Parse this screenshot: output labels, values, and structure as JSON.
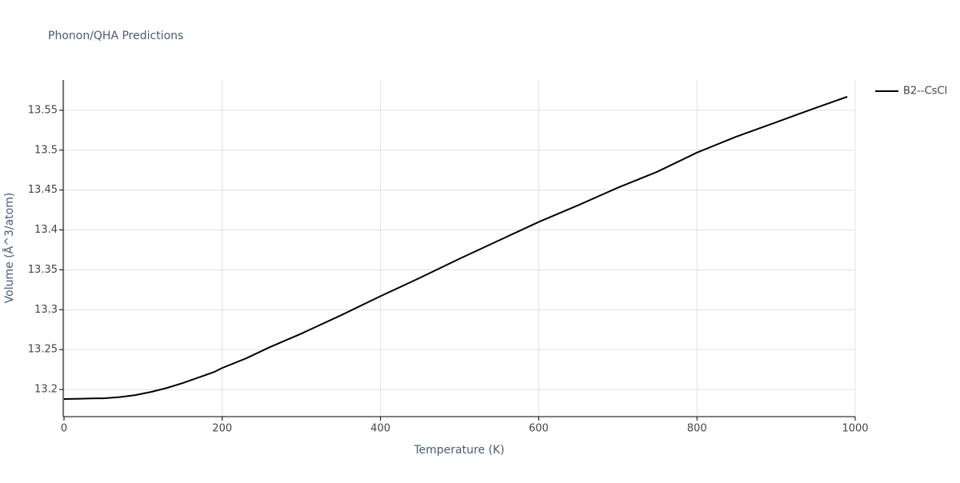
{
  "chart_data": {
    "type": "line",
    "title": "Phonon/QHA Predictions",
    "x_label": "Temperature (K)",
    "y_label": "Volume (Å^3/atom)",
    "x": [
      0,
      20,
      40,
      50,
      70,
      90,
      110,
      130,
      150,
      170,
      190,
      200,
      230,
      260,
      300,
      350,
      400,
      450,
      500,
      550,
      600,
      650,
      700,
      750,
      800,
      850,
      900,
      950,
      990
    ],
    "series": [
      {
        "name": "B2--CsCl",
        "color": "#000000",
        "values": [
          13.188,
          13.1885,
          13.189,
          13.189,
          13.1905,
          13.193,
          13.197,
          13.202,
          13.208,
          13.215,
          13.222,
          13.227,
          13.239,
          13.253,
          13.27,
          13.293,
          13.317,
          13.34,
          13.364,
          13.387,
          13.41,
          13.431,
          13.453,
          13.473,
          13.497,
          13.517,
          13.535,
          13.553,
          13.567
        ]
      }
    ],
    "xlim": [
      0,
      1000
    ],
    "xticks": [
      0,
      200,
      400,
      600,
      800,
      1000
    ],
    "ylim": [
      13.167,
      13.588
    ],
    "yticks": [
      13.2,
      13.25,
      13.3,
      13.35,
      13.4,
      13.45,
      13.5,
      13.55
    ],
    "grid": true,
    "legend": "right"
  }
}
